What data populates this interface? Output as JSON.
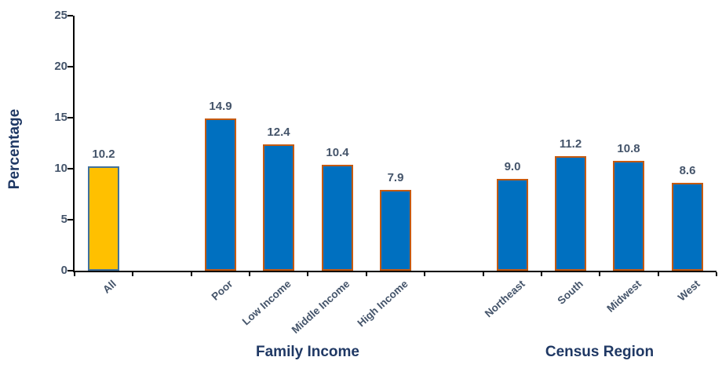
{
  "colors": {
    "background": "#FFFFFF",
    "axis_line": "#000000",
    "axis_title_text": "#1F3864",
    "group_label_text": "#1F3864",
    "tick_label_text": "#44546A",
    "value_label_text": "#44546A",
    "bar_blue_fill": "#0070C0",
    "bar_blue_border": "#C55A11",
    "bar_gold_fill": "#FFC000",
    "bar_gold_border": "#41719C"
  },
  "chart_data": {
    "type": "bar",
    "title": "",
    "xlabel": "",
    "ylabel": "Percentage",
    "ylim": [
      0,
      25
    ],
    "yticks": [
      0,
      5,
      10,
      15,
      20,
      25
    ],
    "grid": false,
    "legend": "none",
    "x_tick_label_rotation_deg": 42,
    "groups": [
      {
        "label": "",
        "bars": [
          {
            "category": "All",
            "value": 10.2,
            "label": "10.2",
            "fill": "#FFC000",
            "border": "#41719C"
          }
        ]
      },
      {
        "label": "Family Income",
        "bars": [
          {
            "category": "Poor",
            "value": 14.9,
            "label": "14.9",
            "fill": "#0070C0",
            "border": "#C55A11"
          },
          {
            "category": "Low Income",
            "value": 12.4,
            "label": "12.4",
            "fill": "#0070C0",
            "border": "#C55A11"
          },
          {
            "category": "Middle Income",
            "value": 10.4,
            "label": "10.4",
            "fill": "#0070C0",
            "border": "#C55A11"
          },
          {
            "category": "High Income",
            "value": 7.9,
            "label": "7.9",
            "fill": "#0070C0",
            "border": "#C55A11"
          }
        ]
      },
      {
        "label": "Census Region",
        "bars": [
          {
            "category": "Northeast",
            "value": 9.0,
            "label": "9.0",
            "fill": "#0070C0",
            "border": "#C55A11"
          },
          {
            "category": "South",
            "value": 11.2,
            "label": "11.2",
            "fill": "#0070C0",
            "border": "#C55A11"
          },
          {
            "category": "Midwest",
            "value": 10.8,
            "label": "10.8",
            "fill": "#0070C0",
            "border": "#C55A11"
          },
          {
            "category": "West",
            "value": 8.6,
            "label": "8.6",
            "fill": "#0070C0",
            "border": "#C55A11"
          }
        ]
      }
    ]
  }
}
